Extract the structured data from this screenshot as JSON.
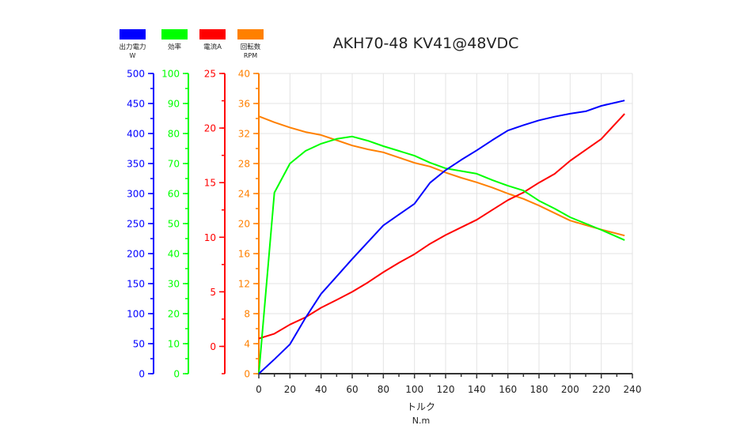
{
  "chart_data": {
    "type": "line",
    "title": "AKH70-48 KV41@48VDC",
    "xlabel": "トルク",
    "xunit": "N.m",
    "xlim": [
      0,
      240
    ],
    "xticks": [
      0,
      20,
      40,
      60,
      80,
      100,
      120,
      140,
      160,
      180,
      200,
      220,
      240
    ],
    "grid": true,
    "legend_placement": "top-left",
    "x": [
      0,
      10,
      20,
      30,
      40,
      50,
      60,
      70,
      80,
      90,
      100,
      110,
      120,
      130,
      140,
      150,
      160,
      170,
      180,
      190,
      200,
      210,
      220,
      235
    ],
    "series": [
      {
        "name": "出力電力",
        "unit": "W",
        "color": "#0000ff",
        "ylim": [
          0,
          500
        ],
        "ticks": [
          0,
          50,
          100,
          150,
          200,
          250,
          300,
          350,
          400,
          450,
          500
        ],
        "values": [
          0,
          24,
          49,
          93,
          133,
          162,
          191,
          219,
          247,
          265,
          283,
          318,
          339,
          356,
          372,
          389,
          405,
          414,
          422,
          428,
          433,
          437,
          446,
          455
        ]
      },
      {
        "name": "効率",
        "unit": "",
        "color": "#00ff00",
        "ylim": [
          0,
          100
        ],
        "ticks": [
          0,
          10,
          20,
          30,
          40,
          50,
          60,
          70,
          80,
          90,
          100
        ],
        "values": [
          0,
          60.3,
          70,
          74.2,
          76.6,
          78.2,
          79,
          77.6,
          75.8,
          74.2,
          72.6,
          70.3,
          68.4,
          67.5,
          66.6,
          64.5,
          62.6,
          61,
          57.6,
          55,
          52.1,
          50,
          47.9,
          44.5
        ]
      },
      {
        "name": "電流A",
        "unit": "",
        "color": "#ff0000",
        "ylim": [
          -2.5,
          25
        ],
        "ticks": [
          0,
          5,
          10,
          15,
          20,
          25
        ],
        "values": [
          0.72,
          1.16,
          2.0,
          2.67,
          3.54,
          4.26,
          5.0,
          5.85,
          6.8,
          7.66,
          8.45,
          9.4,
          10.2,
          10.9,
          11.6,
          12.5,
          13.4,
          14.1,
          15.0,
          15.8,
          17,
          18,
          19,
          21.3
        ]
      },
      {
        "name": "回転数",
        "unit": "RPM",
        "color": "#ff8000",
        "ylim": [
          0,
          40
        ],
        "ticks": [
          0,
          4,
          8,
          12,
          16,
          20,
          24,
          28,
          32,
          36,
          40
        ],
        "values": [
          34.3,
          33.5,
          32.8,
          32.2,
          31.8,
          31.1,
          30.4,
          29.9,
          29.5,
          28.8,
          28.1,
          27.6,
          26.8,
          26.1,
          25.5,
          24.8,
          24.0,
          23.3,
          22.4,
          21.4,
          20.4,
          19.8,
          19.2,
          18.4
        ]
      }
    ]
  }
}
